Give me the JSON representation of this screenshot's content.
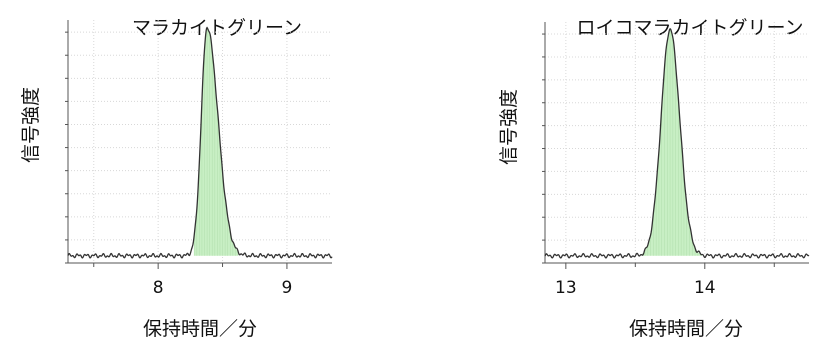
{
  "chart_data": [
    {
      "type": "line",
      "title": "マラカイトグリーン",
      "xlabel": "保持時間／分",
      "ylabel": "信号強度",
      "xlim": [
        7.3,
        9.35
      ],
      "ylim": [
        0,
        100
      ],
      "x_ticks": [
        8,
        9
      ],
      "x_minor_ticks": [
        7.5,
        8.5
      ],
      "grid": true,
      "baseline": 3,
      "peak": {
        "center": 8.38,
        "height": 94,
        "sigma_left": 0.045,
        "sigma_right": 0.085,
        "fill_from": 8.28,
        "fill_to": 8.62
      },
      "colors": {
        "line": "#333333",
        "fill": "#c8efc4",
        "grid": "#d8d8d8",
        "axis": "#555555"
      }
    },
    {
      "type": "line",
      "title": "ロイコマラカイトグリーン",
      "xlabel": "保持時間／分",
      "ylabel": "信号強度",
      "xlim": [
        12.85,
        14.75
      ],
      "ylim": [
        0,
        100
      ],
      "x_ticks": [
        13,
        14
      ],
      "x_minor_ticks": [
        13.5,
        14.5
      ],
      "grid": true,
      "baseline": 3,
      "peak": {
        "center": 13.75,
        "height": 94,
        "sigma_left": 0.065,
        "sigma_right": 0.07,
        "fill_from": 13.55,
        "fill_to": 13.98
      },
      "colors": {
        "line": "#333333",
        "fill": "#c8efc4",
        "grid": "#d8d8d8",
        "axis": "#555555"
      }
    }
  ]
}
